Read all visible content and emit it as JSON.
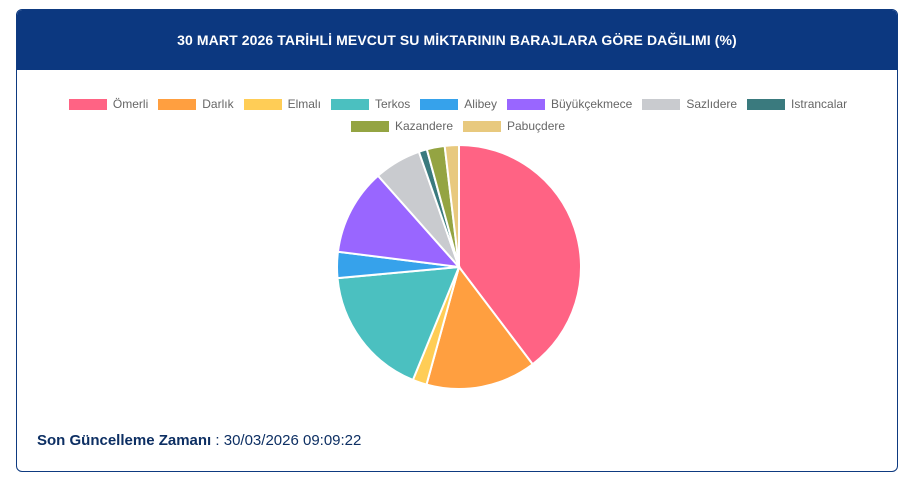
{
  "header": {
    "title": "30 MART 2026 TARİHLİ MEVCUT SU MİKTARININ BARAJLARA GÖRE DAĞILIMI (%)"
  },
  "chart_data": {
    "type": "pie",
    "title": "30 MART 2026 TARİHLİ MEVCUT SU MİKTARININ BARAJLARA GÖRE DAĞILIMI (%)",
    "legend_position": "top",
    "series": [
      {
        "name": "Ömerli",
        "value": 40.2,
        "color": "#ff6384"
      },
      {
        "name": "Darlık",
        "value": 14.8,
        "color": "#ff9f40"
      },
      {
        "name": "Elmalı",
        "value": 1.9,
        "color": "#ffcd56"
      },
      {
        "name": "Terkos",
        "value": 17.6,
        "color": "#4bc0c0"
      },
      {
        "name": "Alibey",
        "value": 3.5,
        "color": "#36a2eb"
      },
      {
        "name": "Büyükçekmece",
        "value": 11.6,
        "color": "#9966ff"
      },
      {
        "name": "Sazlıdere",
        "value": 6.3,
        "color": "#c9cbcf"
      },
      {
        "name": "Istrancalar",
        "value": 1.1,
        "color": "#3a7a7e"
      },
      {
        "name": "Kazandere",
        "value": 2.4,
        "color": "#94a442"
      },
      {
        "name": "Pabuçdere",
        "value": 1.9,
        "color": "#e8c97e"
      }
    ]
  },
  "footer": {
    "label": "Son Güncelleme Zamanı",
    "separator": ":",
    "timestamp": "30/03/2026 09:09:22"
  }
}
